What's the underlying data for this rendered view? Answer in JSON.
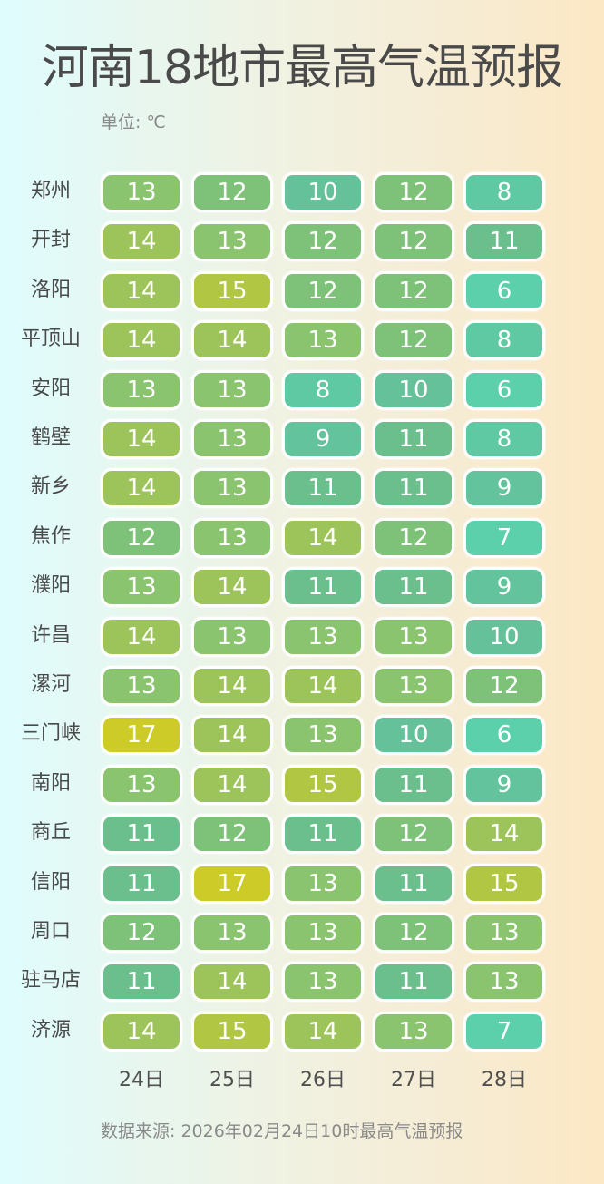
{
  "header": {
    "title": "河南18地市最高气温预报",
    "unit": "单位: ℃"
  },
  "footer": {
    "source": "数据来源: 2026年02月24日10时最高气温预报"
  },
  "colors": {
    "6": "#5bd0ab",
    "7": "#5bd0ab",
    "8": "#5ec9a3",
    "9": "#62c39c",
    "10": "#64c199",
    "11": "#6bbf8d",
    "12": "#7ec178",
    "13": "#8ac46e",
    "14": "#9dc45a",
    "15": "#b1c744",
    "17": "#cccb28"
  },
  "chart_data": {
    "type": "heatmap",
    "title": "河南18地市最高气温预报",
    "unit": "℃",
    "x": [
      "24日",
      "25日",
      "26日",
      "27日",
      "28日"
    ],
    "y": [
      "郑州",
      "开封",
      "洛阳",
      "平顶山",
      "安阳",
      "鹤壁",
      "新乡",
      "焦作",
      "濮阳",
      "许昌",
      "漯河",
      "三门峡",
      "南阳",
      "商丘",
      "信阳",
      "周口",
      "驻马店",
      "济源"
    ],
    "values": [
      [
        13,
        12,
        10,
        12,
        8
      ],
      [
        14,
        13,
        12,
        12,
        11
      ],
      [
        14,
        15,
        12,
        12,
        6
      ],
      [
        14,
        14,
        13,
        12,
        8
      ],
      [
        13,
        13,
        8,
        10,
        6
      ],
      [
        14,
        13,
        9,
        11,
        8
      ],
      [
        14,
        13,
        11,
        11,
        9
      ],
      [
        12,
        13,
        14,
        12,
        7
      ],
      [
        13,
        14,
        11,
        11,
        9
      ],
      [
        14,
        13,
        13,
        13,
        10
      ],
      [
        13,
        14,
        14,
        13,
        12
      ],
      [
        17,
        14,
        13,
        10,
        6
      ],
      [
        13,
        14,
        15,
        11,
        9
      ],
      [
        11,
        12,
        11,
        12,
        14
      ],
      [
        11,
        17,
        13,
        11,
        15
      ],
      [
        12,
        13,
        13,
        12,
        13
      ],
      [
        11,
        14,
        13,
        11,
        13
      ],
      [
        14,
        15,
        14,
        13,
        7
      ]
    ],
    "colormap": "teal (low) → green → yellow (high)",
    "footnote": "数据来源: 2026年02月24日10时最高气温预报"
  }
}
